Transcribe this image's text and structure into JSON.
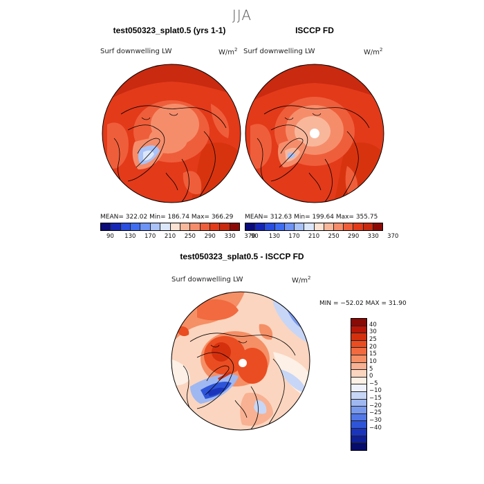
{
  "figure": {
    "season": "JJA"
  },
  "panels": {
    "model": {
      "title": "test050323_splat0.5 (yrs 1-1)",
      "variable": "Surf downwelling LW",
      "unit_base": "W/m",
      "unit_exp": "2",
      "stats": "MEAN= 322.02   Min= 186.74   Max= 366.29"
    },
    "obs": {
      "title": "ISCCP FD",
      "variable": "Surf downwelling LW",
      "unit_base": "W/m",
      "unit_exp": "2",
      "stats": "MEAN= 312.63   Min= 199.64   Max= 355.75"
    },
    "diff": {
      "title": "test050323_splat0.5 - ISCCP FD",
      "variable": "Surf downwelling LW",
      "unit_base": "W/m",
      "unit_exp": "2",
      "stats": "MIN = −52.02  MAX =   31.90"
    }
  },
  "colorbars": {
    "abs_colors": [
      "#0b0b7a",
      "#1526b5",
      "#2a4ee0",
      "#3f6df2",
      "#6d93f5",
      "#a9c2f7",
      "#dce6fa",
      "#fbe2d2",
      "#f8b79b",
      "#f58d6b",
      "#ef5e3a",
      "#e33a1a",
      "#c92a10",
      "#8c0a06"
    ],
    "abs_ticks": [
      "90",
      "130",
      "170",
      "210",
      "250",
      "290",
      "330",
      "370"
    ],
    "diff_colors": [
      "#8a0a06",
      "#b81607",
      "#d5300e",
      "#ea4d21",
      "#f26a3f",
      "#f58f66",
      "#f8b192",
      "#fbd5bf",
      "#fdf0e6",
      "#eef1fb",
      "#c7d6f6",
      "#9fb8f2",
      "#7999ed",
      "#5277e6",
      "#2e55d9",
      "#1a35bc",
      "#0f1f96",
      "#060c6a"
    ],
    "diff_ticks": [
      "40",
      "30",
      "25",
      "20",
      "15",
      "10",
      "5",
      "0",
      "−5",
      "−10",
      "−15",
      "−20",
      "−25",
      "−30",
      "−40"
    ]
  }
}
